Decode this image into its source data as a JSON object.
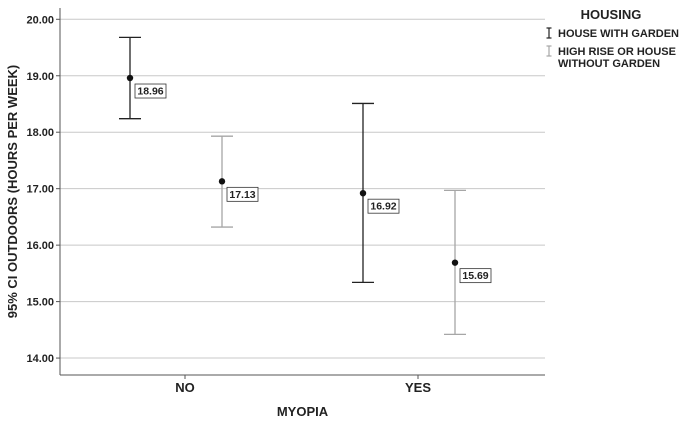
{
  "chart_data": {
    "type": "error-bar",
    "title": "",
    "xlabel": "MYOPIA",
    "ylabel": "95% CI OUTDOORS (HOURS PER WEEK)",
    "categories": [
      "NO",
      "YES"
    ],
    "ylim": [
      13.7,
      20.2
    ],
    "yticks": [
      "14.00",
      "15.00",
      "16.00",
      "17.00",
      "18.00",
      "19.00",
      "20.00"
    ],
    "grid": "horizontal",
    "legend": {
      "title": "HOUSING",
      "placement": "top-right"
    },
    "series": [
      {
        "name": "HOUSE WITH GARDEN",
        "color": "#222222",
        "means": [
          18.96,
          16.92
        ],
        "lower": [
          18.24,
          15.34
        ],
        "upper": [
          19.68,
          18.51
        ],
        "labels": [
          "18.96",
          "16.92"
        ]
      },
      {
        "name": "HIGH RISE OR HOUSE WITHOUT GARDEN",
        "name_lines": [
          "HIGH RISE OR HOUSE",
          "WITHOUT GARDEN"
        ],
        "color": "#a6a6a6",
        "means": [
          17.13,
          15.69
        ],
        "lower": [
          16.32,
          14.42
        ],
        "upper": [
          17.93,
          16.97
        ],
        "labels": [
          "17.13",
          "15.69"
        ]
      }
    ]
  }
}
